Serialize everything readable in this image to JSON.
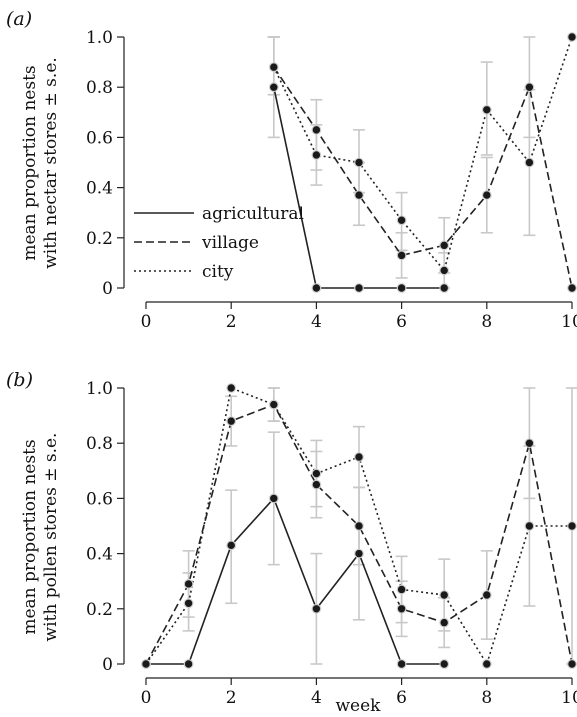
{
  "chart_data": [
    {
      "type": "line",
      "panel_label": "(a)",
      "ylabel_lines": [
        "mean proportion nests",
        "with nectar stores ± s.e."
      ],
      "xlim": [
        0,
        10
      ],
      "ylim": [
        0,
        1
      ],
      "x_ticks": [
        "0",
        "2",
        "4",
        "6",
        "8",
        "10"
      ],
      "y_ticks": [
        "0",
        "0.2",
        "0.4",
        "0.6",
        "0.8",
        "1.0"
      ],
      "legend": {
        "placement": "lower-left",
        "entries": [
          "agricultural",
          "village",
          "city"
        ]
      },
      "series": [
        {
          "name": "agricultural",
          "style": "solid",
          "points": [
            {
              "x": 3,
              "y": 0.8,
              "lo": 0.6,
              "hi": 1.0
            },
            {
              "x": 4,
              "y": 0.0
            },
            {
              "x": 5,
              "y": 0.0
            },
            {
              "x": 6,
              "y": 0.0
            },
            {
              "x": 7,
              "y": 0.0
            }
          ]
        },
        {
          "name": "village",
          "style": "dashed",
          "points": [
            {
              "x": 3,
              "y": 0.88,
              "lo": 0.77,
              "hi": 1.0
            },
            {
              "x": 4,
              "y": 0.63,
              "lo": 0.47,
              "hi": 0.75
            },
            {
              "x": 5,
              "y": 0.37,
              "lo": 0.25,
              "hi": 0.5
            },
            {
              "x": 6,
              "y": 0.13,
              "lo": 0.04,
              "hi": 0.22
            },
            {
              "x": 7,
              "y": 0.17,
              "lo": 0.06,
              "hi": 0.28
            },
            {
              "x": 8,
              "y": 0.37,
              "lo": 0.22,
              "hi": 0.52
            },
            {
              "x": 9,
              "y": 0.8,
              "lo": 0.6,
              "hi": 1.0
            },
            {
              "x": 10,
              "y": 0.0
            }
          ]
        },
        {
          "name": "city",
          "style": "dotted",
          "points": [
            {
              "x": 3,
              "y": 0.88,
              "lo": 0.77,
              "hi": 1.0
            },
            {
              "x": 4,
              "y": 0.53,
              "lo": 0.41,
              "hi": 0.65
            },
            {
              "x": 5,
              "y": 0.5,
              "lo": 0.38,
              "hi": 0.63
            },
            {
              "x": 6,
              "y": 0.27,
              "lo": 0.15,
              "hi": 0.38
            },
            {
              "x": 7,
              "y": 0.07,
              "lo": 0.0,
              "hi": 0.14
            },
            {
              "x": 8,
              "y": 0.71,
              "lo": 0.53,
              "hi": 0.9
            },
            {
              "x": 9,
              "y": 0.5,
              "lo": 0.21,
              "hi": 0.79
            },
            {
              "x": 10,
              "y": 1.0
            }
          ]
        }
      ]
    },
    {
      "type": "line",
      "panel_label": "(b)",
      "ylabel_lines": [
        "mean proportion nests",
        "with pollen stores ± s.e."
      ],
      "xlabel": "week",
      "xlim": [
        0,
        10
      ],
      "ylim": [
        0,
        1
      ],
      "x_ticks": [
        "0",
        "2",
        "4",
        "6",
        "8",
        "10"
      ],
      "y_ticks": [
        "0",
        "0.2",
        "0.4",
        "0.6",
        "0.8",
        "1.0"
      ],
      "series": [
        {
          "name": "agricultural",
          "style": "solid",
          "points": [
            {
              "x": 0,
              "y": 0.0
            },
            {
              "x": 1,
              "y": 0.0
            },
            {
              "x": 2,
              "y": 0.43,
              "lo": 0.22,
              "hi": 0.63
            },
            {
              "x": 3,
              "y": 0.6,
              "lo": 0.36,
              "hi": 0.84
            },
            {
              "x": 4,
              "y": 0.2,
              "lo": 0.0,
              "hi": 0.4
            },
            {
              "x": 5,
              "y": 0.4,
              "lo": 0.16,
              "hi": 0.64
            },
            {
              "x": 6,
              "y": 0.0
            },
            {
              "x": 7,
              "y": 0.0
            }
          ]
        },
        {
          "name": "village",
          "style": "dashed",
          "points": [
            {
              "x": 0,
              "y": 0.0
            },
            {
              "x": 1,
              "y": 0.29,
              "lo": 0.17,
              "hi": 0.41
            },
            {
              "x": 2,
              "y": 0.88,
              "lo": 0.79,
              "hi": 0.97
            },
            {
              "x": 3,
              "y": 0.94,
              "lo": 0.88,
              "hi": 1.0
            },
            {
              "x": 4,
              "y": 0.65,
              "lo": 0.53,
              "hi": 0.77
            },
            {
              "x": 5,
              "y": 0.5,
              "lo": 0.36,
              "hi": 0.64
            },
            {
              "x": 6,
              "y": 0.2,
              "lo": 0.1,
              "hi": 0.3
            },
            {
              "x": 7,
              "y": 0.15,
              "lo": 0.06,
              "hi": 0.24
            },
            {
              "x": 8,
              "y": 0.25,
              "lo": 0.09,
              "hi": 0.41
            },
            {
              "x": 9,
              "y": 0.8,
              "lo": 0.6,
              "hi": 1.0
            },
            {
              "x": 10,
              "y": 0.0
            }
          ]
        },
        {
          "name": "city",
          "style": "dotted",
          "points": [
            {
              "x": 0,
              "y": 0.0
            },
            {
              "x": 1,
              "y": 0.22,
              "lo": 0.12,
              "hi": 0.33
            },
            {
              "x": 2,
              "y": 1.0
            },
            {
              "x": 3,
              "y": 0.94,
              "lo": 0.88,
              "hi": 1.0
            },
            {
              "x": 4,
              "y": 0.69,
              "lo": 0.57,
              "hi": 0.81
            },
            {
              "x": 5,
              "y": 0.75,
              "lo": 0.64,
              "hi": 0.86
            },
            {
              "x": 6,
              "y": 0.27,
              "lo": 0.15,
              "hi": 0.39
            },
            {
              "x": 7,
              "y": 0.25,
              "lo": 0.12,
              "hi": 0.38
            },
            {
              "x": 8,
              "y": 0.0
            },
            {
              "x": 9,
              "y": 0.5,
              "lo": 0.21,
              "hi": 0.79
            },
            {
              "x": 10,
              "y": 0.5,
              "lo": 0.0,
              "hi": 1.0
            }
          ]
        }
      ]
    }
  ]
}
